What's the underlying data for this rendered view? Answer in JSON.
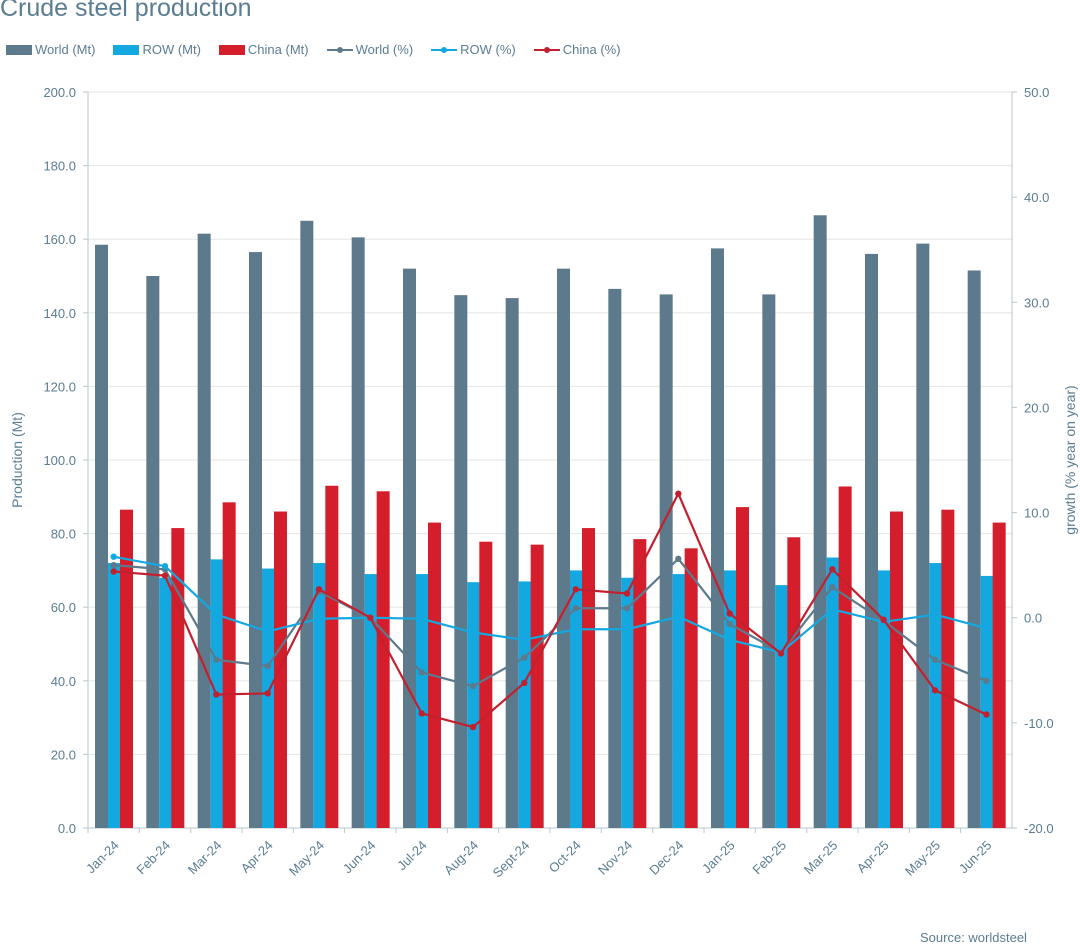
{
  "chart_data": {
    "type": "bar",
    "title": "Crude steel production",
    "categories": [
      "Jan-24",
      "Feb-24",
      "Mar-24",
      "Apr-24",
      "May-24",
      "Jun-24",
      "Jul-24",
      "Aug-24",
      "Sept-24",
      "Oct-24",
      "Nov-24",
      "Dec-24",
      "Jan-25",
      "Feb-25",
      "Mar-25",
      "Apr-25",
      "May-25",
      "Jun-25"
    ],
    "ylabel": "Production (Mt)",
    "y2label": "growth (% year on year)",
    "ylim": [
      0,
      200
    ],
    "y2lim": [
      -20,
      50
    ],
    "yticks": [
      "0.0",
      "20.0",
      "40.0",
      "60.0",
      "80.0",
      "100.0",
      "120.0",
      "140.0",
      "160.0",
      "180.0",
      "200.0"
    ],
    "y2ticks": [
      "-20.0",
      "-10.0",
      "0.0",
      "10.0",
      "20.0",
      "30.0",
      "40.0",
      "50.0"
    ],
    "grid": true,
    "legend_position": "top-left",
    "series": [
      {
        "name": "World (Mt)",
        "kind": "bar",
        "axis": "left",
        "color": "#5d7a8c",
        "values": [
          158.5,
          150.0,
          161.5,
          156.5,
          165.0,
          160.5,
          152.0,
          144.8,
          144.0,
          152.0,
          146.5,
          145.0,
          157.5,
          145.0,
          166.5,
          156.0,
          158.8,
          151.5
        ]
      },
      {
        "name": "ROW (Mt)",
        "kind": "bar",
        "axis": "left",
        "color": "#13a8e0",
        "values": [
          72.0,
          68.0,
          73.0,
          70.5,
          72.0,
          69.0,
          69.0,
          66.8,
          67.0,
          70.0,
          68.0,
          69.0,
          70.0,
          66.0,
          73.5,
          70.0,
          72.0,
          68.5
        ]
      },
      {
        "name": "China (Mt)",
        "kind": "bar",
        "axis": "left",
        "color": "#d41e2c",
        "values": [
          86.5,
          81.5,
          88.5,
          86.0,
          93.0,
          91.5,
          83.0,
          77.8,
          77.0,
          81.5,
          78.5,
          76.0,
          87.2,
          79.0,
          92.8,
          86.0,
          86.5,
          83.0
        ]
      },
      {
        "name": "World (%)",
        "kind": "line",
        "axis": "right",
        "color": "#5d7a8c",
        "values": [
          5.0,
          4.6,
          -4.0,
          -4.6,
          2.5,
          0.0,
          -5.2,
          -6.5,
          -3.8,
          0.9,
          0.9,
          5.6,
          -0.6,
          -3.3,
          2.9,
          -0.3,
          -4.0,
          -6.0
        ]
      },
      {
        "name": "ROW (%)",
        "kind": "line",
        "axis": "right",
        "color": "#13a8e0",
        "values": [
          5.8,
          4.9,
          0.3,
          -1.3,
          -0.1,
          0.0,
          -0.1,
          -1.4,
          -2.1,
          -1.1,
          -1.1,
          0.1,
          -2.1,
          -3.3,
          0.8,
          -0.4,
          0.3,
          -1.0
        ]
      },
      {
        "name": "China (%)",
        "kind": "line",
        "axis": "right",
        "color": "#c2202e",
        "values": [
          4.4,
          4.0,
          -7.3,
          -7.2,
          2.7,
          0.0,
          -9.1,
          -10.4,
          -6.2,
          2.7,
          2.3,
          11.8,
          0.4,
          -3.4,
          4.6,
          -0.2,
          -6.9,
          -9.2
        ]
      }
    ]
  },
  "source": "Source: worldsteel"
}
